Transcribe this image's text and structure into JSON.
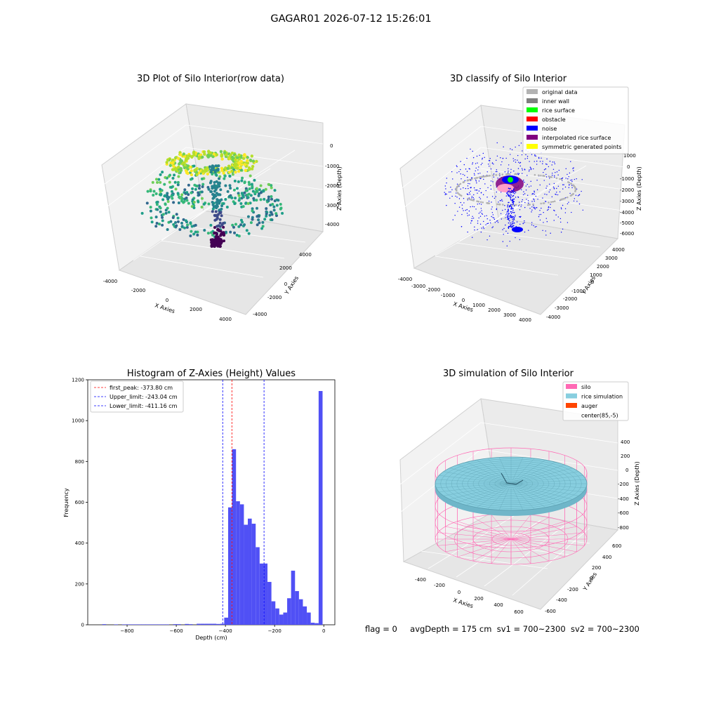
{
  "figure": {
    "suptitle": "GAGAR01 2026-07-12 15:26:01",
    "footer": {
      "flag": "flag = 0",
      "avg_depth": "avgDepth = 175 cm",
      "sv1": "sv1 = 700~2300",
      "sv2": "sv2 = 700~2300"
    }
  },
  "colors": {
    "histogram_bar": "#5050f5",
    "first_peak_line": "#ff0000",
    "limit_lines": "#0000ff",
    "silo": "#ff69b4",
    "rice": "#87cedf",
    "auger": "#ff4500",
    "original": "#b3b3b3",
    "inner_wall": "#808080",
    "rice_surface": "#00ff00",
    "obstacle": "#ff0000",
    "noise": "#0000ff",
    "interp_surface": "#800080",
    "symmetric": "#ffff00"
  },
  "chart_data": [
    {
      "type": "scatter",
      "title": "3D Plot of Silo Interior(row data)",
      "xlabel": "X Axies",
      "ylabel": "Y Axies",
      "zlabel": "Z Axies (Depth)",
      "x_ticks": [
        "-4000",
        "-2000",
        "0",
        "2000",
        "4000"
      ],
      "y_ticks": [
        "-4000",
        "-2000",
        "0",
        "2000",
        "4000"
      ],
      "z_ticks": [
        "0",
        "-1000",
        "-2000",
        "-3000",
        "-4000"
      ],
      "xlim": [
        -4500,
        4500
      ],
      "ylim": [
        -4500,
        4500
      ],
      "zlim": [
        -5000,
        0
      ],
      "colormap": "viridis"
    },
    {
      "type": "scatter",
      "title": "3D classify of Silo Interior",
      "xlabel": "X Axies",
      "ylabel": "Y Axies",
      "zlabel": "Z Axies (Depth)",
      "x_ticks": [
        "-4000",
        "-3000",
        "-2000",
        "-1000",
        "0",
        "1000",
        "2000",
        "3000",
        "4000"
      ],
      "y_ticks": [
        "4000",
        "3000",
        "2000",
        "1000",
        "0",
        "-1000",
        "-2000",
        "-3000",
        "-4000"
      ],
      "z_ticks": [
        "1000",
        "0",
        "-1000",
        "-2000",
        "-3000",
        "-4000",
        "-5000",
        "-6000"
      ],
      "xlim": [
        -4200,
        4200
      ],
      "ylim": [
        -4200,
        4200
      ],
      "zlim": [
        -6500,
        1500
      ],
      "legend_position": "upper right",
      "legend": [
        {
          "label": "original data",
          "color": "#b3b3b3"
        },
        {
          "label": "inner wall",
          "color": "#808080"
        },
        {
          "label": "rice surface",
          "color": "#00ff00"
        },
        {
          "label": "obstacle",
          "color": "#ff0000"
        },
        {
          "label": "noise",
          "color": "#0000ff"
        },
        {
          "label": "interpolated rice surface",
          "color": "#800080"
        },
        {
          "label": "symmetric generated points",
          "color": "#ffff00"
        }
      ]
    },
    {
      "type": "bar",
      "title": "Histogram of Z-Axies (Height) Values",
      "xlabel": "Depth (cm)",
      "ylabel": "Frequency",
      "xlim": [
        -960,
        45
      ],
      "ylim": [
        0,
        1200
      ],
      "x_ticks": [
        -800,
        -600,
        -400,
        -200,
        0
      ],
      "y_ticks": [
        0,
        200,
        400,
        600,
        800,
        1000,
        1200
      ],
      "bin_width": 16,
      "bins": [
        {
          "x": -893,
          "y": 3
        },
        {
          "x": -845,
          "y": 2
        },
        {
          "x": -813,
          "y": 2
        },
        {
          "x": -797,
          "y": 2
        },
        {
          "x": -781,
          "y": 2
        },
        {
          "x": -765,
          "y": 2
        },
        {
          "x": -749,
          "y": 2
        },
        {
          "x": -733,
          "y": 2
        },
        {
          "x": -717,
          "y": 2
        },
        {
          "x": -701,
          "y": 2
        },
        {
          "x": -685,
          "y": 2
        },
        {
          "x": -669,
          "y": 2
        },
        {
          "x": -653,
          "y": 2
        },
        {
          "x": -637,
          "y": 2
        },
        {
          "x": -605,
          "y": 3
        },
        {
          "x": -589,
          "y": 3
        },
        {
          "x": -557,
          "y": 4
        },
        {
          "x": -541,
          "y": 3
        },
        {
          "x": -509,
          "y": 5
        },
        {
          "x": -493,
          "y": 5
        },
        {
          "x": -477,
          "y": 5
        },
        {
          "x": -461,
          "y": 5
        },
        {
          "x": -445,
          "y": 5
        },
        {
          "x": -429,
          "y": 4
        },
        {
          "x": -413,
          "y": 5
        },
        {
          "x": -397,
          "y": 35
        },
        {
          "x": -381,
          "y": 575
        },
        {
          "x": -365,
          "y": 860
        },
        {
          "x": -349,
          "y": 605
        },
        {
          "x": -333,
          "y": 590
        },
        {
          "x": -317,
          "y": 490
        },
        {
          "x": -301,
          "y": 520
        },
        {
          "x": -285,
          "y": 495
        },
        {
          "x": -269,
          "y": 380
        },
        {
          "x": -253,
          "y": 300
        },
        {
          "x": -237,
          "y": 300
        },
        {
          "x": -221,
          "y": 210
        },
        {
          "x": -205,
          "y": 115
        },
        {
          "x": -189,
          "y": 80
        },
        {
          "x": -173,
          "y": 50
        },
        {
          "x": -157,
          "y": 60
        },
        {
          "x": -141,
          "y": 130
        },
        {
          "x": -125,
          "y": 265
        },
        {
          "x": -109,
          "y": 165
        },
        {
          "x": -93,
          "y": 125
        },
        {
          "x": -77,
          "y": 90
        },
        {
          "x": -61,
          "y": 60
        },
        {
          "x": -45,
          "y": 10
        },
        {
          "x": -29,
          "y": 8
        },
        {
          "x": -13,
          "y": 1145
        }
      ],
      "lines": [
        {
          "label": "first_peak: -373.80 cm",
          "x": -373.8,
          "color": "#ff0000"
        },
        {
          "label": "Upper_limit: -243.04 cm",
          "x": -243.04,
          "color": "#0000ff"
        },
        {
          "label": "Lower_limit: -411.16 cm",
          "x": -411.16,
          "color": "#0000ff"
        }
      ],
      "legend_position": "upper left"
    },
    {
      "type": "area",
      "title": "3D simulation of Silo Interior",
      "xlabel": "X Axies",
      "ylabel": "Y Axies",
      "zlabel": "Z Axies (Depth)",
      "x_ticks": [
        "-400",
        "-200",
        "0",
        "200",
        "400",
        "600"
      ],
      "y_ticks": [
        "600",
        "400",
        "200",
        "0",
        "-200",
        "-400",
        "-600"
      ],
      "z_ticks": [
        "400",
        "200",
        "0",
        "-200",
        "-400",
        "-600",
        "-800"
      ],
      "xlim": [
        -600,
        700
      ],
      "ylim": [
        -700,
        700
      ],
      "zlim": [
        -900,
        450
      ],
      "legend_position": "upper right",
      "legend": [
        {
          "label": "silo",
          "color": "#ff69b4"
        },
        {
          "label": "rice simulation",
          "color": "#87cedf"
        },
        {
          "label": "auger",
          "color": "#ff4500"
        },
        {
          "label": "center(85,-5)",
          "color": ""
        }
      ]
    }
  ]
}
